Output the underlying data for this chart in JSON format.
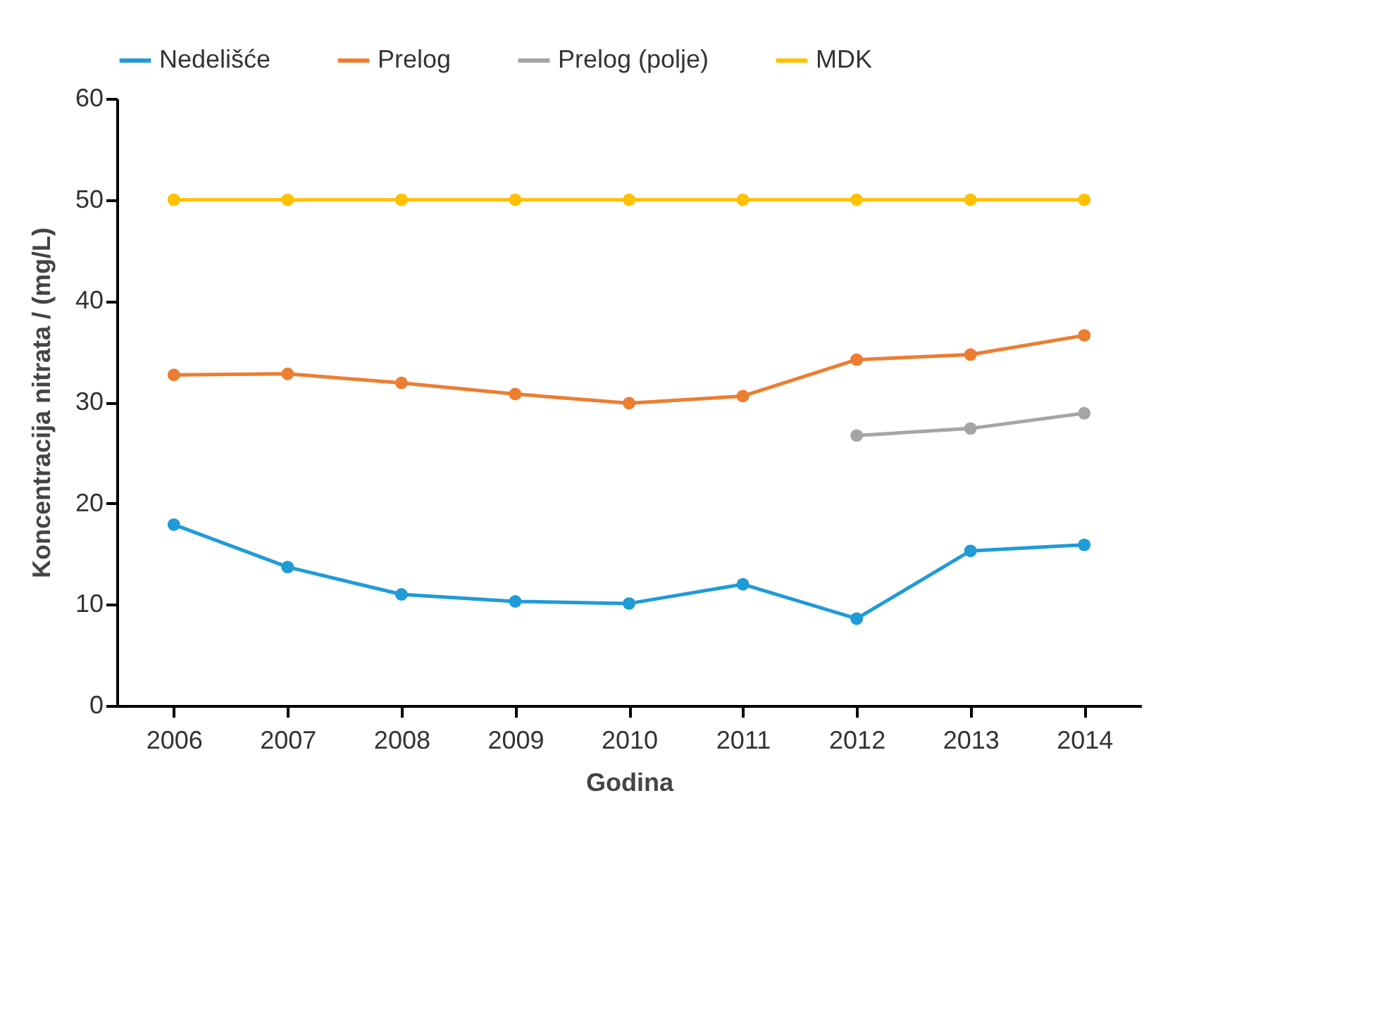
{
  "chart_data": {
    "type": "line",
    "xlabel": "Godina",
    "ylabel": "Koncentracija nitrata / (mg/L)",
    "categories": [
      "2006",
      "2007",
      "2008",
      "2009",
      "2010",
      "2011",
      "2012",
      "2013",
      "2014"
    ],
    "series": [
      {
        "name": "Nedelišće",
        "color": "#1f9bd7",
        "values": [
          17.9,
          13.7,
          11.0,
          10.3,
          10.1,
          12.0,
          8.6,
          15.3,
          15.9
        ]
      },
      {
        "name": "Prelog",
        "color": "#ed7d31",
        "values": [
          32.7,
          32.8,
          31.9,
          30.8,
          29.9,
          30.6,
          34.2,
          34.7,
          36.6
        ]
      },
      {
        "name": "Prelog (polje)",
        "color": "#a5a5a5",
        "values": [
          null,
          null,
          null,
          null,
          null,
          null,
          26.7,
          27.4,
          28.9
        ]
      },
      {
        "name": "MDK",
        "color": "#ffc000",
        "values": [
          50,
          50,
          50,
          50,
          50,
          50,
          50,
          50,
          50
        ]
      }
    ],
    "ylim": [
      0,
      60
    ],
    "yticks": [
      0,
      10,
      20,
      30,
      40,
      50,
      60
    ],
    "grid": false,
    "legend": "top",
    "marker": "circle",
    "line_style": "solid"
  }
}
